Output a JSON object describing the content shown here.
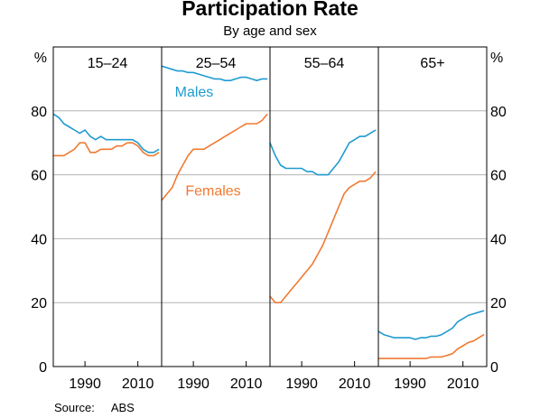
{
  "chart_data": {
    "type": "line",
    "title": "Participation Rate",
    "subtitle": "By age and sex",
    "ylabel_left": "%",
    "ylabel_right": "%",
    "ylim": [
      0,
      100
    ],
    "yticks": [
      0,
      20,
      40,
      60,
      80
    ],
    "xlim": [
      1978,
      2019
    ],
    "xticks": [
      1990,
      2010
    ],
    "grid": true,
    "colors": {
      "males": "#1f9bd0",
      "females": "#f07a32"
    },
    "series_labels": {
      "males": "Males",
      "females": "Females"
    },
    "panels": [
      {
        "name": "15–24",
        "series": [
          {
            "name": "Males",
            "x": [
              1978,
              1980,
              1982,
              1984,
              1986,
              1988,
              1990,
              1992,
              1994,
              1996,
              1998,
              2000,
              2002,
              2004,
              2006,
              2008,
              2010,
              2012,
              2014,
              2016,
              2018
            ],
            "values": [
              79,
              78,
              76,
              75,
              74,
              73,
              74,
              72,
              71,
              72,
              71,
              71,
              71,
              71,
              71,
              71,
              70,
              68,
              67,
              67,
              68
            ]
          },
          {
            "name": "Females",
            "x": [
              1978,
              1980,
              1982,
              1984,
              1986,
              1988,
              1990,
              1992,
              1994,
              1996,
              1998,
              2000,
              2002,
              2004,
              2006,
              2008,
              2010,
              2012,
              2014,
              2016,
              2018
            ],
            "values": [
              66,
              66,
              66,
              67,
              68,
              70,
              70,
              67,
              67,
              68,
              68,
              68,
              69,
              69,
              70,
              70,
              69,
              67,
              66,
              66,
              67
            ]
          }
        ]
      },
      {
        "name": "25–54",
        "series": [
          {
            "name": "Males",
            "x": [
              1978,
              1980,
              1982,
              1984,
              1986,
              1988,
              1990,
              1992,
              1994,
              1996,
              1998,
              2000,
              2002,
              2004,
              2006,
              2008,
              2010,
              2012,
              2014,
              2016,
              2018
            ],
            "values": [
              94,
              93.5,
              93,
              92.5,
              92.5,
              92,
              92,
              91.5,
              91,
              90.5,
              90,
              90,
              89.5,
              89.5,
              90,
              90.5,
              90.5,
              90,
              89.5,
              90,
              90
            ]
          },
          {
            "name": "Females",
            "x": [
              1978,
              1980,
              1982,
              1984,
              1986,
              1988,
              1990,
              1992,
              1994,
              1996,
              1998,
              2000,
              2002,
              2004,
              2006,
              2008,
              2010,
              2012,
              2014,
              2016,
              2018
            ],
            "values": [
              52,
              54,
              56,
              60,
              63,
              66,
              68,
              68,
              68,
              69,
              70,
              71,
              72,
              73,
              74,
              75,
              76,
              76,
              76,
              77,
              79
            ]
          }
        ]
      },
      {
        "name": "55–64",
        "series": [
          {
            "name": "Males",
            "x": [
              1978,
              1980,
              1982,
              1984,
              1986,
              1988,
              1990,
              1992,
              1994,
              1996,
              1998,
              2000,
              2002,
              2004,
              2006,
              2008,
              2010,
              2012,
              2014,
              2016,
              2018
            ],
            "values": [
              70,
              66,
              63,
              62,
              62,
              62,
              62,
              61,
              61,
              60,
              60,
              60,
              62,
              64,
              67,
              70,
              71,
              72,
              72,
              73,
              74
            ]
          },
          {
            "name": "Females",
            "x": [
              1978,
              1980,
              1982,
              1984,
              1986,
              1988,
              1990,
              1992,
              1994,
              1996,
              1998,
              2000,
              2002,
              2004,
              2006,
              2008,
              2010,
              2012,
              2014,
              2016,
              2018
            ],
            "values": [
              22,
              20,
              20,
              22,
              24,
              26,
              28,
              30,
              32,
              35,
              38,
              42,
              46,
              50,
              54,
              56,
              57,
              58,
              58,
              59,
              61
            ]
          }
        ]
      },
      {
        "name": "65+",
        "series": [
          {
            "name": "Males",
            "x": [
              1978,
              1980,
              1982,
              1984,
              1986,
              1988,
              1990,
              1992,
              1994,
              1996,
              1998,
              2000,
              2002,
              2004,
              2006,
              2008,
              2010,
              2012,
              2014,
              2016,
              2018
            ],
            "values": [
              11,
              10,
              9.5,
              9,
              9,
              9,
              9,
              8.5,
              9,
              9,
              9.5,
              9.5,
              10,
              11,
              12,
              14,
              15,
              16,
              16.5,
              17,
              17.5
            ]
          },
          {
            "name": "Females",
            "x": [
              1978,
              1980,
              1982,
              1984,
              1986,
              1988,
              1990,
              1992,
              1994,
              1996,
              1998,
              2000,
              2002,
              2004,
              2006,
              2008,
              2010,
              2012,
              2014,
              2016,
              2018
            ],
            "values": [
              2.5,
              2.5,
              2.5,
              2.5,
              2.5,
              2.5,
              2.5,
              2.5,
              2.5,
              2.5,
              3,
              3,
              3,
              3.5,
              4,
              5.5,
              6.5,
              7.5,
              8,
              9,
              10
            ]
          }
        ]
      }
    ],
    "source_label": "Source:",
    "source": "ABS"
  }
}
